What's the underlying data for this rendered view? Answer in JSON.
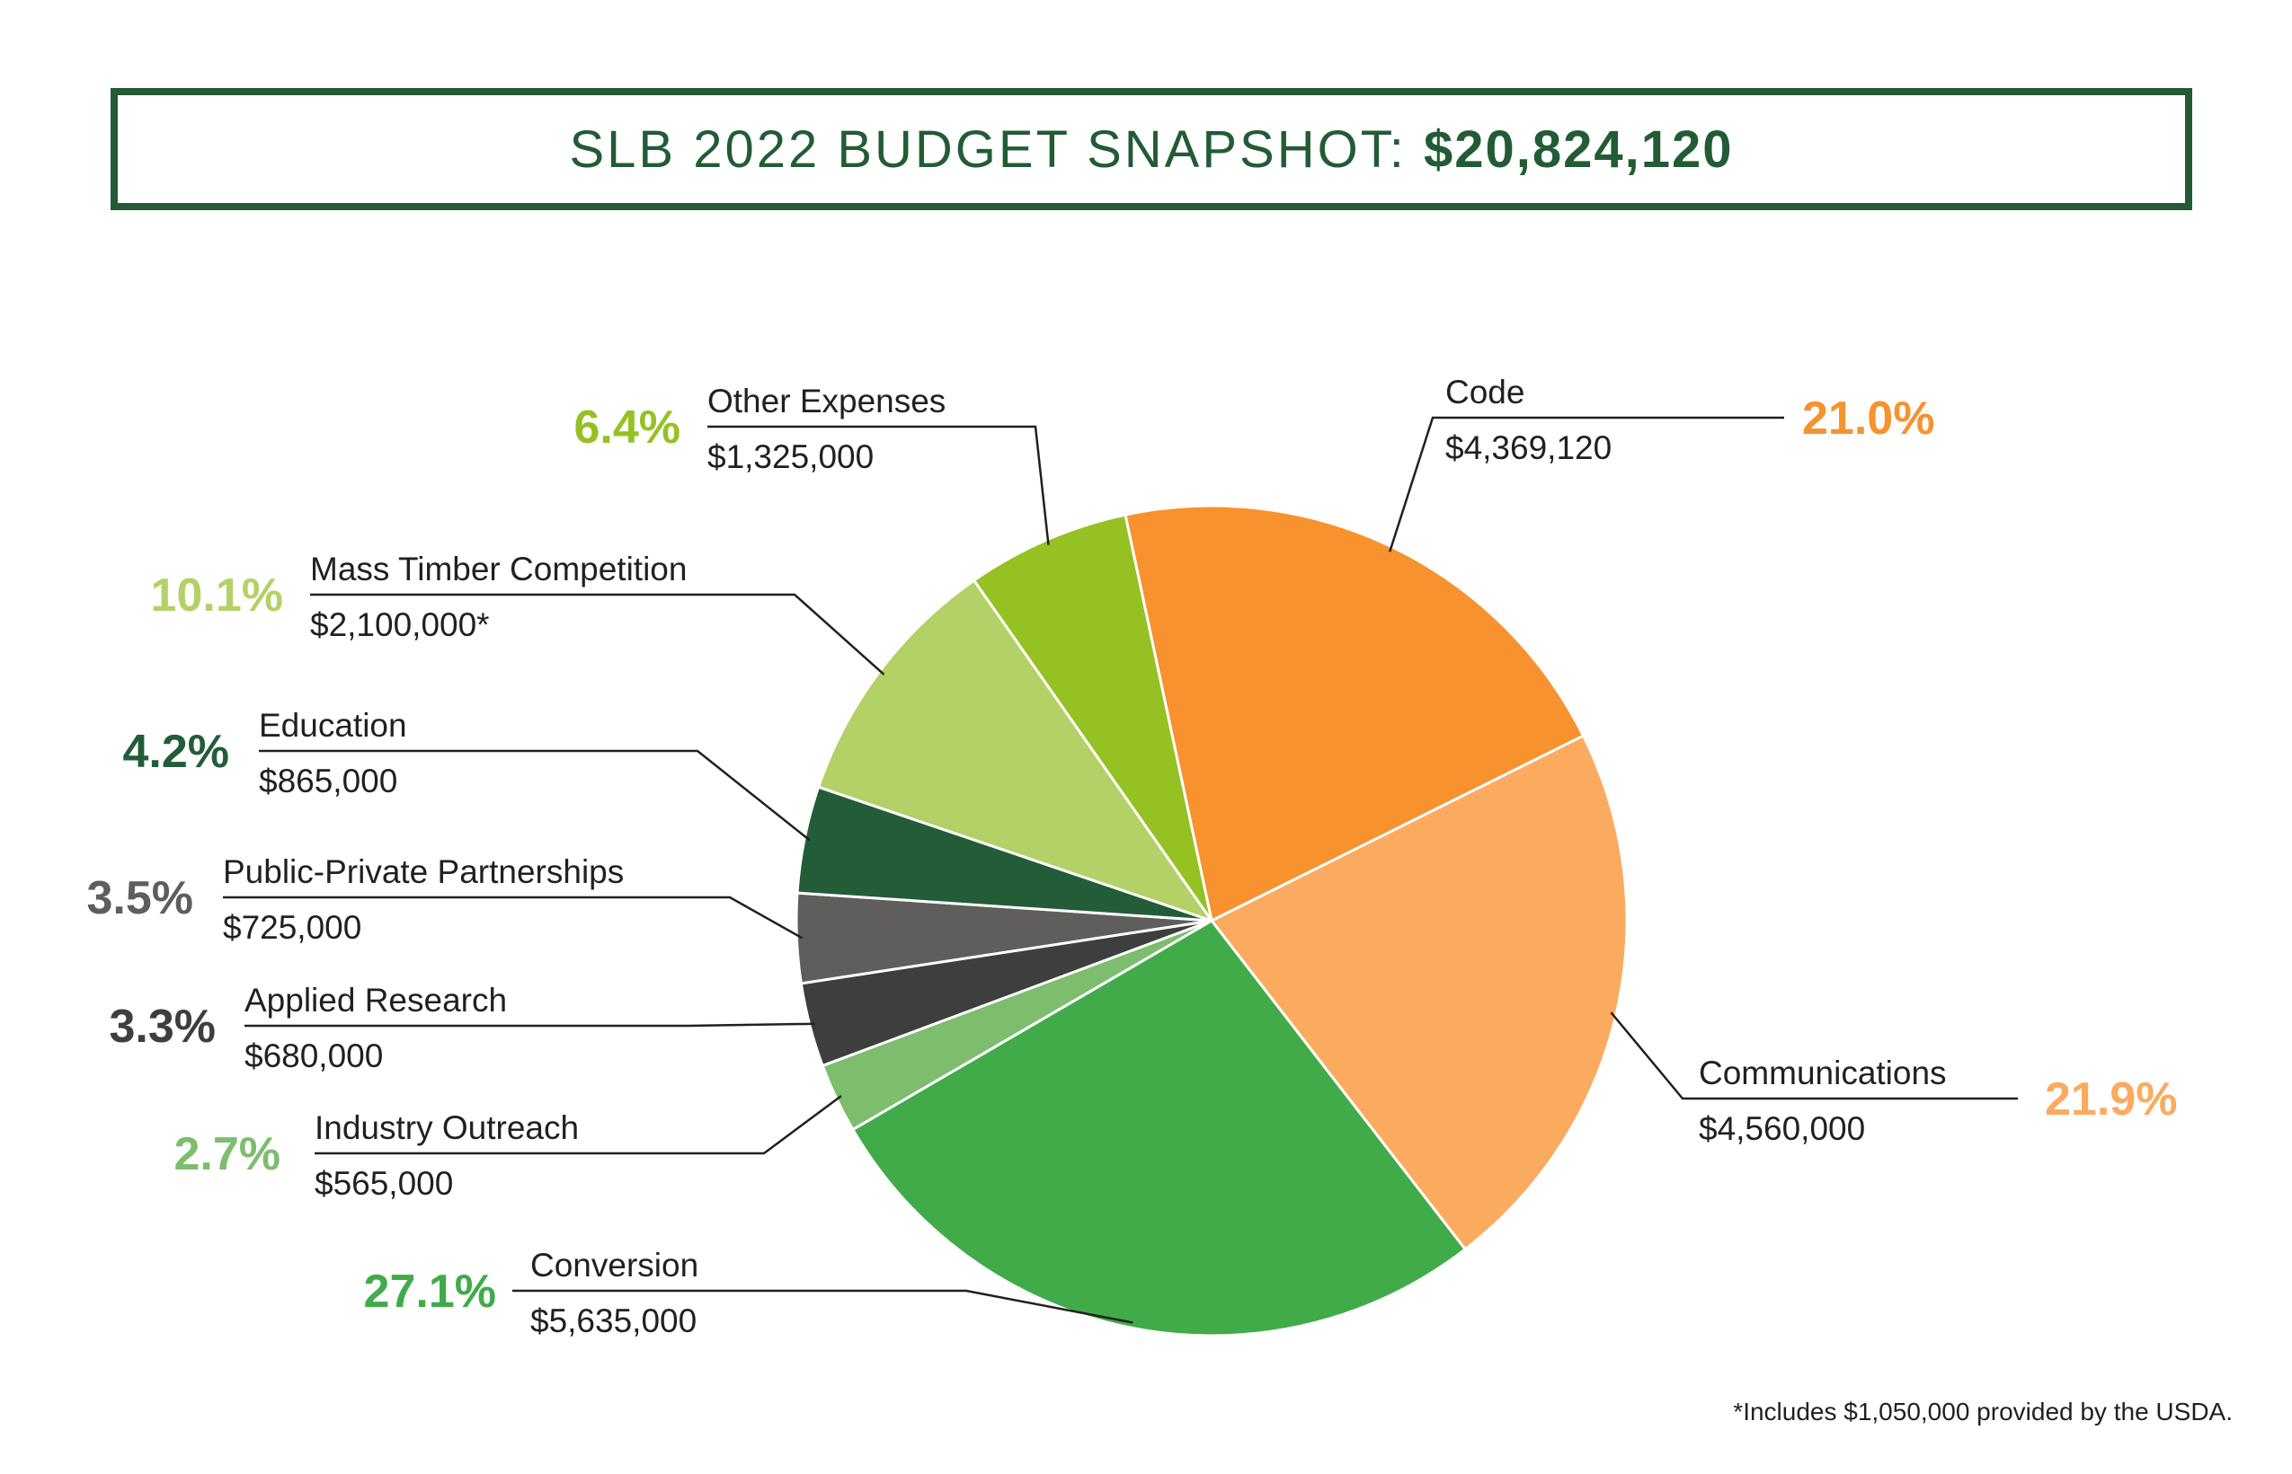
{
  "header": {
    "title": "SLB 2022 BUDGET SNAPSHOT:",
    "total": "$20,824,120"
  },
  "footnote": "*Includes $1,050,000 provided by the USDA.",
  "chart_data": {
    "type": "pie",
    "title": "SLB 2022 BUDGET SNAPSHOT: $20,824,120",
    "total": 20824120,
    "start_angle_deg": -12,
    "direction": "clockwise",
    "legend": "none",
    "slices": [
      {
        "name": "Code",
        "value": 4369120,
        "value_label": "$4,369,120",
        "percent_label": "21.0%",
        "color": "#f7922e",
        "label_color": "#f7922e"
      },
      {
        "name": "Communications",
        "value": 4560000,
        "value_label": "$4,560,000",
        "percent_label": "21.9%",
        "color": "#fbab60",
        "label_color": "#fbab60"
      },
      {
        "name": "Conversion",
        "value": 5635000,
        "value_label": "$5,635,000",
        "percent_label": "27.1%",
        "color": "#41ab4a",
        "label_color": "#41ab4a"
      },
      {
        "name": "Industry Outreach",
        "value": 565000,
        "value_label": "$565,000",
        "percent_label": "2.7%",
        "color": "#7cbd6e",
        "label_color": "#7cbd6e"
      },
      {
        "name": "Applied Research",
        "value": 680000,
        "value_label": "$680,000",
        "percent_label": "3.3%",
        "color": "#3e3e3e",
        "label_color": "#3e3e3e"
      },
      {
        "name": "Public-Private Partnerships",
        "value": 725000,
        "value_label": "$725,000",
        "percent_label": "3.5%",
        "color": "#5f5e5c",
        "label_color": "#5f5e5c"
      },
      {
        "name": "Education",
        "value": 865000,
        "value_label": "$865,000",
        "percent_label": "4.2%",
        "color": "#235d38",
        "label_color": "#235d38"
      },
      {
        "name": "Mass Timber Competition",
        "value": 2100000,
        "value_label": "$2,100,000*",
        "percent_label": "10.1%",
        "color": "#b3d166",
        "label_color": "#b3d166"
      },
      {
        "name": "Other Expenses",
        "value": 1325000,
        "value_label": "$1,325,000",
        "percent_label": "6.4%",
        "color": "#95c122",
        "label_color": "#95c122"
      }
    ]
  }
}
